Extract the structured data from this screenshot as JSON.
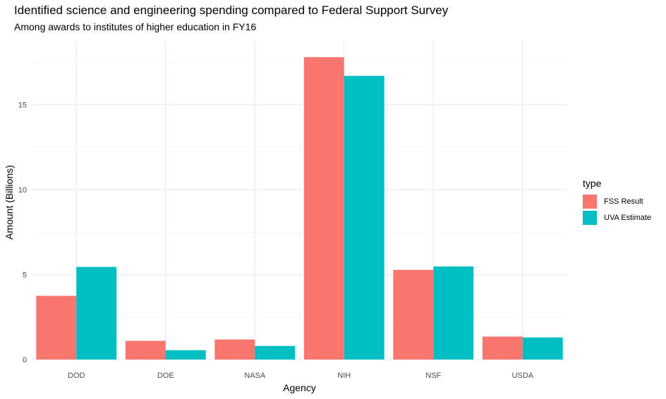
{
  "chart_data": {
    "type": "bar",
    "title": "Identified science and engineering spending compared to Federal Support Survey",
    "subtitle": "Among awards to institutes of higher education in FY16",
    "xlabel": "Agency",
    "ylabel": "Amount (Billions)",
    "categories": [
      "DOD",
      "DOE",
      "NASA",
      "NIH",
      "NSF",
      "USDA"
    ],
    "series": [
      {
        "name": "FSS Result",
        "color": "#F8766D",
        "values": [
          3.75,
          1.1,
          1.18,
          17.8,
          5.28,
          1.35
        ]
      },
      {
        "name": "UVA Estimate",
        "color": "#00BFC4",
        "values": [
          5.45,
          0.55,
          0.8,
          16.7,
          5.48,
          1.3
        ]
      }
    ],
    "ylim": [
      0,
      18.8
    ],
    "yticks": [
      0,
      5,
      10,
      15
    ],
    "grid": true,
    "legend": {
      "title": "type",
      "position": "right"
    }
  }
}
